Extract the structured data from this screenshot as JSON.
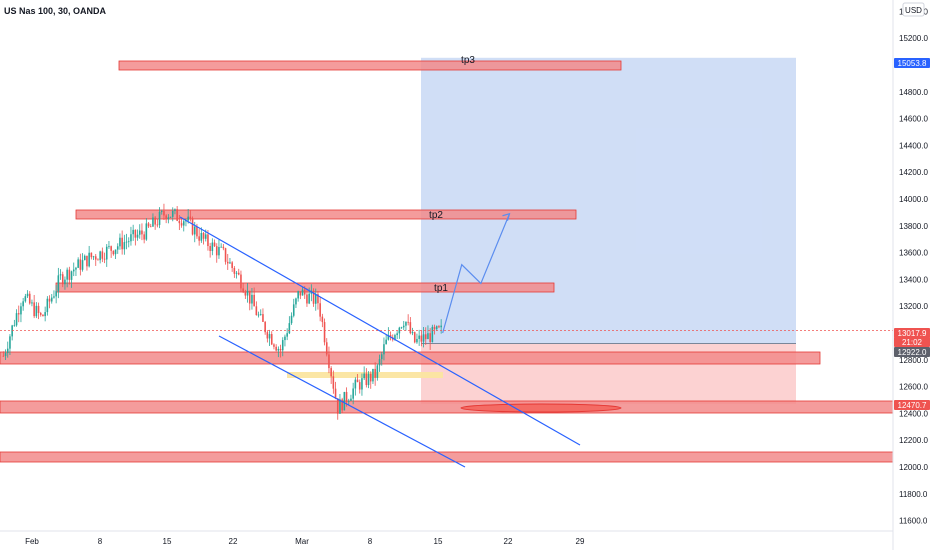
{
  "header": {
    "symbol_title": "US Nas 100, 30, OANDA"
  },
  "price_scale": {
    "currency_label": "USD"
  },
  "chart_data": {
    "type": "candlestick",
    "symbol": "US Nas 100",
    "interval": "30",
    "source": "OANDA",
    "y_ticks": [
      "11600.0",
      "11800.0",
      "12000.0",
      "12200.0",
      "12400.0",
      "12600.0",
      "12800.0",
      "13000.0",
      "13200.0",
      "13400.0",
      "13600.0",
      "13800.0",
      "14000.0",
      "14200.0",
      "14400.0",
      "14600.0",
      "14800.0",
      "15000.0",
      "15200.0",
      "15400.0"
    ],
    "x_ticks": [
      "Feb",
      "8",
      "15",
      "22",
      "Mar",
      "8",
      "15",
      "22",
      "29"
    ],
    "price_badges": [
      {
        "text": "15053.8",
        "kind": "blue"
      },
      {
        "text": "13017.9",
        "kind": "red"
      },
      {
        "text": "21:02",
        "kind": "red"
      },
      {
        "text": "12922.0",
        "kind": "grey"
      },
      {
        "text": "12470.7",
        "kind": "red"
      }
    ],
    "annotations": [
      "tp3",
      "tp2",
      "tp1"
    ],
    "zones": {
      "target_levels": [
        15053.8,
        13900,
        13340
      ],
      "support_levels": [
        12880,
        12470.7,
        12055
      ],
      "entry": 12922.0,
      "position_target": 15053.8,
      "position_stop": 12470.7
    },
    "colors": {
      "up_candle": "#26a69a",
      "down_candle": "#ef5350",
      "zone_red": "#f28b8b",
      "position_blue": "#c8d8f5",
      "position_red": "#fbcaca",
      "channel_line": "#2962ff",
      "yellow_zone": "#fbe5a0"
    },
    "price_path": [
      [
        "2021-01-29",
        12830
      ],
      [
        "2021-01-31",
        13280
      ],
      [
        "2021-02-02",
        13110
      ],
      [
        "2021-02-04",
        13410
      ],
      [
        "2021-02-07",
        13560
      ],
      [
        "2021-02-09",
        13620
      ],
      [
        "2021-02-11",
        13690
      ],
      [
        "2021-02-13",
        13760
      ],
      [
        "2021-02-15",
        13900
      ],
      [
        "2021-02-17",
        13850
      ],
      [
        "2021-02-19",
        13690
      ],
      [
        "2021-02-21",
        13590
      ],
      [
        "2021-02-23",
        13380
      ],
      [
        "2021-02-25",
        13080
      ],
      [
        "2021-02-27",
        12870
      ],
      [
        "2021-03-01",
        13310
      ],
      [
        "2021-03-03",
        13230
      ],
      [
        "2021-03-05",
        12440
      ],
      [
        "2021-03-07",
        12610
      ],
      [
        "2021-03-09",
        12690
      ],
      [
        "2021-03-10",
        12920
      ],
      [
        "2021-03-12",
        13110
      ],
      [
        "2021-03-13",
        12930
      ],
      [
        "2021-03-15",
        12990
      ],
      [
        "2021-03-16",
        13017.9
      ]
    ],
    "projection_path": [
      [
        "2021-03-16",
        13000
      ],
      [
        "2021-03-18",
        13510
      ],
      [
        "2021-03-20",
        13370
      ],
      [
        "2021-03-23",
        13890
      ]
    ]
  }
}
